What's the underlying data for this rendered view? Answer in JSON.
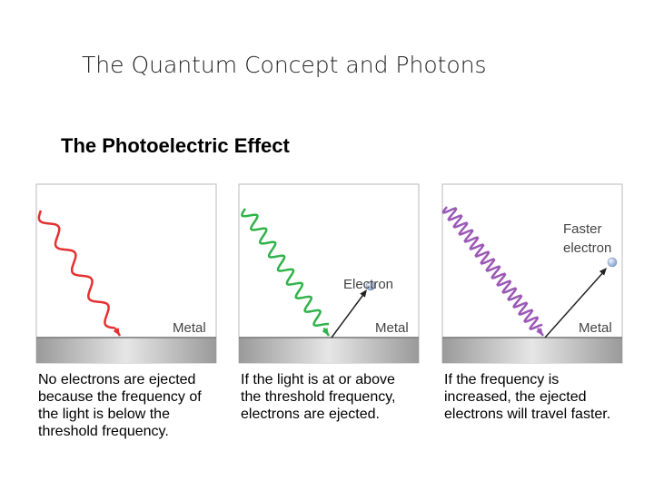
{
  "header": {
    "title": "The Quantum Concept and Photons",
    "subtitle": "The Photoelectric Effect"
  },
  "panels": [
    {
      "labels": [
        "Metal"
      ],
      "caption": [
        "No electrons are ejected",
        "because the frequency of",
        "the light is below the",
        "threshold frequency."
      ]
    },
    {
      "labels": [
        "Metal",
        "Electron"
      ],
      "caption": [
        "If the light is at or above",
        "the threshold frequency,",
        "electrons are ejected."
      ]
    },
    {
      "labels": [
        "Metal",
        "Faster",
        "electron"
      ],
      "caption": [
        "If the frequency is",
        "increased, the ejected",
        "electrons will travel faster."
      ]
    }
  ]
}
